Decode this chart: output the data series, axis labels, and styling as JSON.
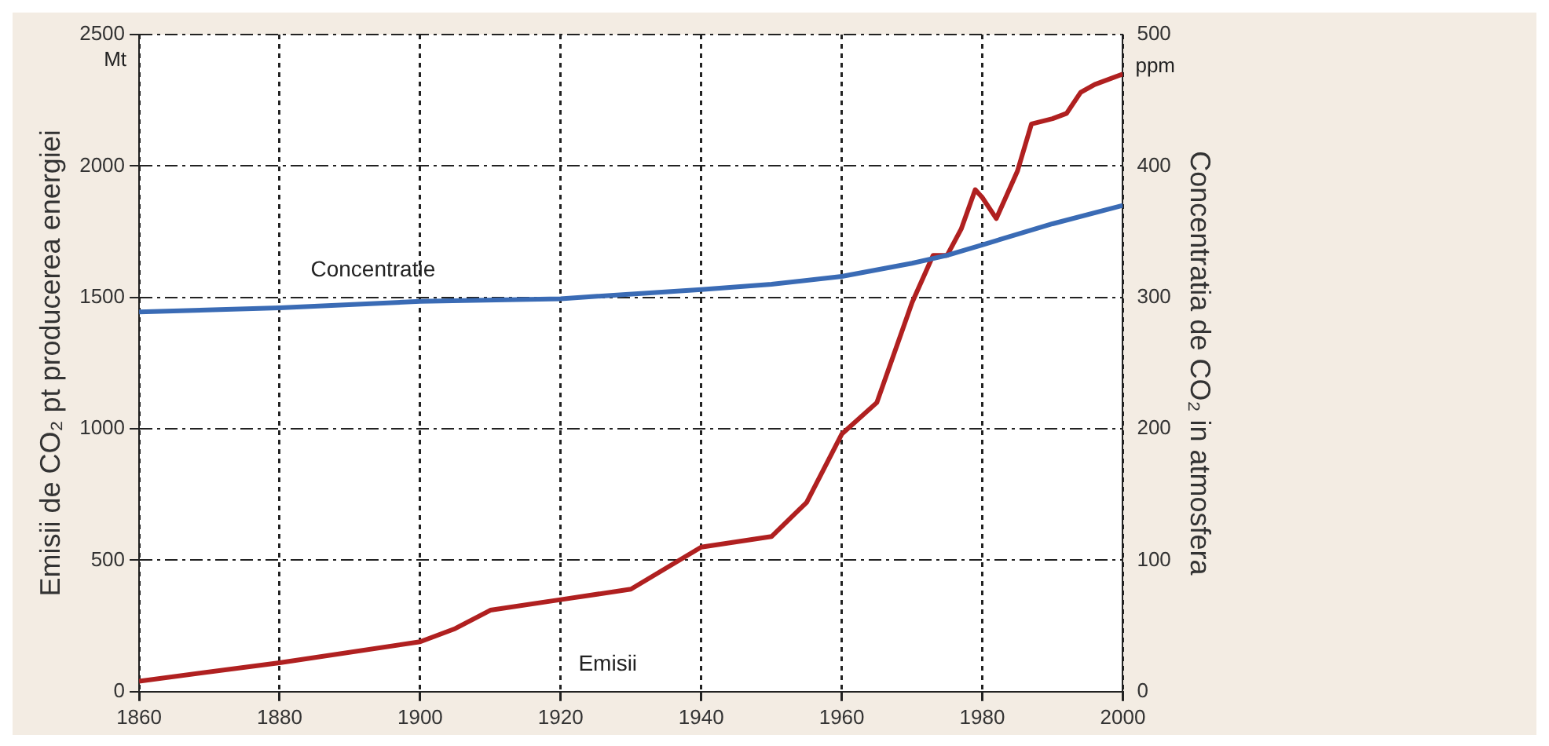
{
  "chart_data": {
    "type": "line",
    "xlabel": null,
    "ylabel": "Emisii de CO₂ pt producerea energiei",
    "y2label": "Concentratia de CO₂ in atmosfera",
    "xlim": [
      1860,
      2000
    ],
    "xticks": [
      1860,
      1880,
      1900,
      1920,
      1940,
      1960,
      1980,
      2000
    ],
    "ylim": [
      0,
      2500
    ],
    "yticks": [
      0,
      500,
      1000,
      1500,
      2000,
      2500
    ],
    "y2lim": [
      0,
      500
    ],
    "y2ticks": [
      0,
      100,
      200,
      300,
      400,
      500
    ],
    "grid": true,
    "legend": false,
    "marker": "none",
    "line_style": "solid",
    "annotations": [
      "Mt",
      "ppm"
    ],
    "series": [
      {
        "name": "Concentratie",
        "color": "#3a6bb5",
        "axis": "y2",
        "x": [
          1860,
          1880,
          1900,
          1920,
          1940,
          1950,
          1960,
          1970,
          1975,
          1980,
          1990,
          2000
        ],
        "values": [
          289,
          292,
          297,
          299,
          306,
          310,
          316,
          326,
          332,
          340,
          356,
          370
        ]
      },
      {
        "name": "Emisii",
        "color": "#b02020",
        "axis": "y",
        "x": [
          1860,
          1880,
          1900,
          1905,
          1910,
          1920,
          1930,
          1940,
          1945,
          1950,
          1955,
          1960,
          1965,
          1970,
          1973,
          1975,
          1977,
          1979,
          1980,
          1982,
          1985,
          1987,
          1990,
          1992,
          1994,
          1996,
          2000
        ],
        "values": [
          40,
          110,
          190,
          240,
          310,
          350,
          390,
          550,
          570,
          590,
          720,
          980,
          1100,
          1480,
          1660,
          1660,
          1760,
          1910,
          1880,
          1800,
          1980,
          2160,
          2180,
          2200,
          2280,
          2310,
          2350
        ]
      }
    ]
  }
}
